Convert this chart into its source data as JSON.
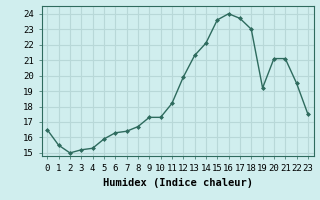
{
  "x": [
    0,
    1,
    2,
    3,
    4,
    5,
    6,
    7,
    8,
    9,
    10,
    11,
    12,
    13,
    14,
    15,
    16,
    17,
    18,
    19,
    20,
    21,
    22,
    23
  ],
  "y": [
    16.5,
    15.5,
    15.0,
    15.2,
    15.3,
    15.9,
    16.3,
    16.4,
    16.7,
    17.3,
    17.3,
    18.2,
    19.9,
    21.3,
    22.1,
    23.6,
    24.0,
    23.7,
    23.0,
    19.2,
    21.1,
    21.1,
    19.5,
    17.5
  ],
  "line_color": "#2e6b5e",
  "marker": "D",
  "marker_size": 2.0,
  "line_width": 1.0,
  "xlabel": "Humidex (Indice chaleur)",
  "ylabel": "",
  "title": "",
  "ylim": [
    14.8,
    24.5
  ],
  "xlim": [
    -0.5,
    23.5
  ],
  "yticks": [
    15,
    16,
    17,
    18,
    19,
    20,
    21,
    22,
    23,
    24
  ],
  "xticks": [
    0,
    1,
    2,
    3,
    4,
    5,
    6,
    7,
    8,
    9,
    10,
    11,
    12,
    13,
    14,
    15,
    16,
    17,
    18,
    19,
    20,
    21,
    22,
    23
  ],
  "bg_color": "#d0eeee",
  "grid_color": "#b8d8d8",
  "tick_fontsize": 6.5,
  "xlabel_fontsize": 7.5,
  "xlabel_fontweight": "bold"
}
